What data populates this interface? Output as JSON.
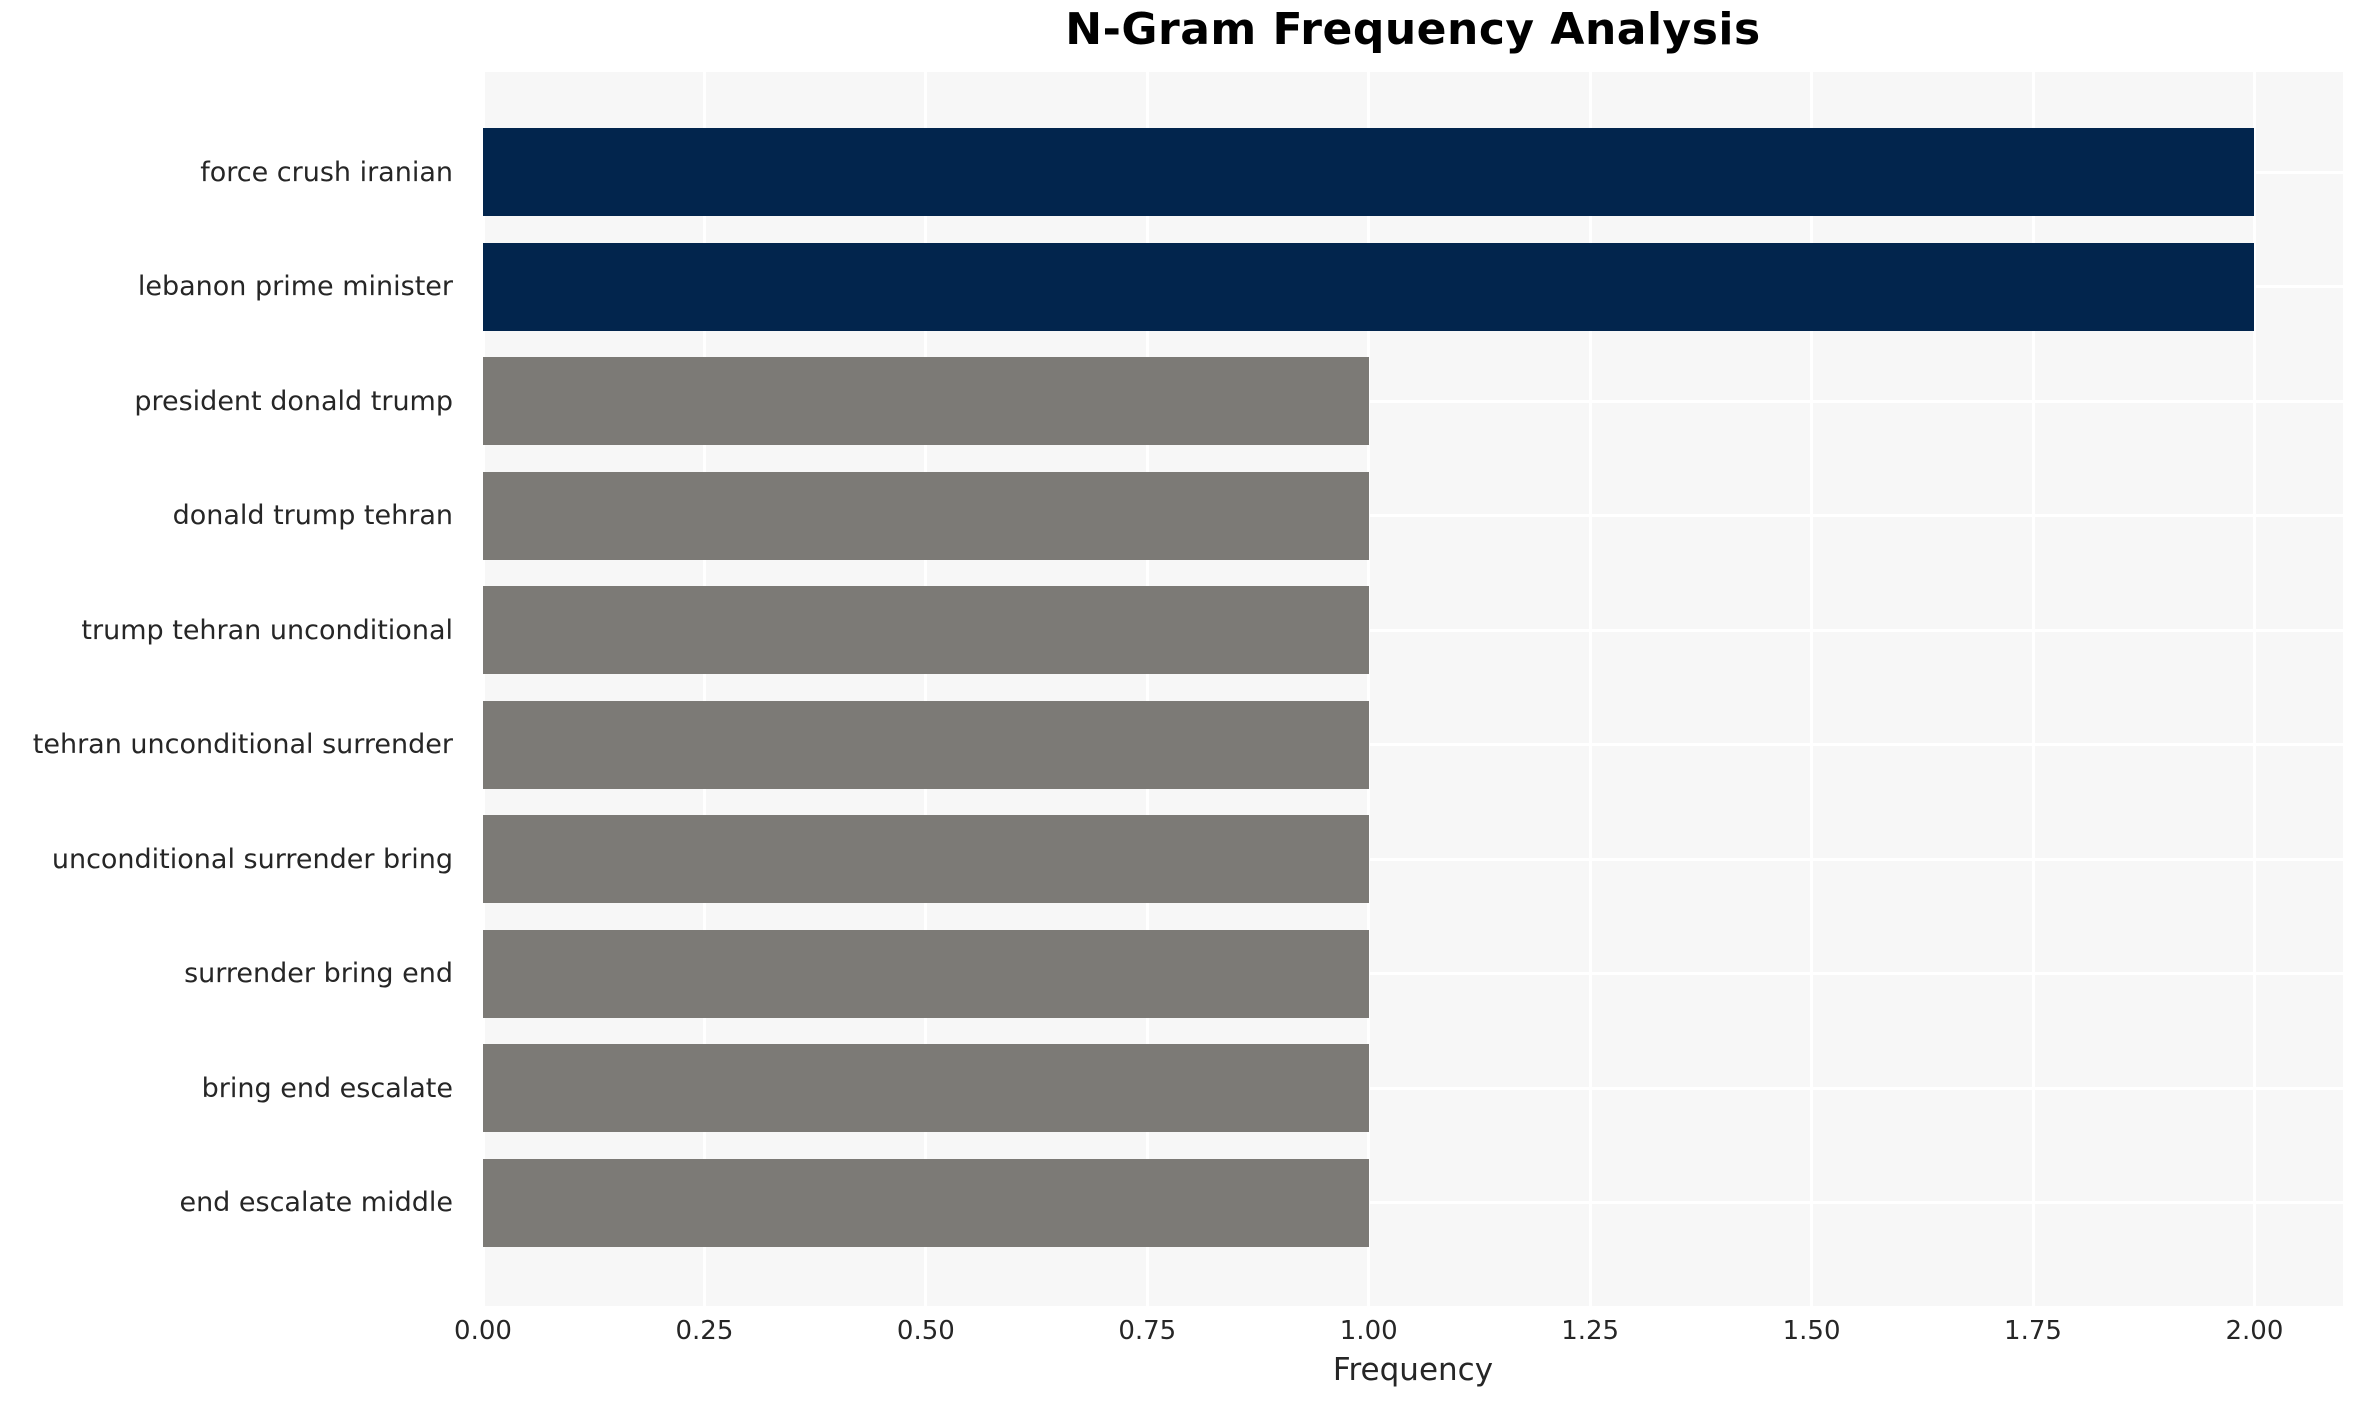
{
  "title": "N-Gram Frequency Analysis",
  "x_axis_label": "Frequency",
  "chart_data": {
    "type": "bar",
    "orientation": "horizontal",
    "title": "N-Gram Frequency Analysis",
    "xlabel": "Frequency",
    "ylabel": "",
    "categories": [
      "force crush iranian",
      "lebanon prime minister",
      "president donald trump",
      "donald trump tehran",
      "trump tehran unconditional",
      "tehran unconditional surrender",
      "unconditional surrender bring",
      "surrender bring end",
      "bring end escalate",
      "end escalate middle"
    ],
    "values": [
      2.0,
      2.0,
      1.0,
      1.0,
      1.0,
      1.0,
      1.0,
      1.0,
      1.0,
      1.0
    ],
    "bar_colors": [
      "#02254d",
      "#02254d",
      "#7c7a76",
      "#7c7a76",
      "#7c7a76",
      "#7c7a76",
      "#7c7a76",
      "#7c7a76",
      "#7c7a76",
      "#7c7a76"
    ],
    "xlim": [
      0,
      2.1
    ],
    "x_ticks": [
      0.0,
      0.25,
      0.5,
      0.75,
      1.0,
      1.25,
      1.5,
      1.75,
      2.0
    ],
    "x_tick_labels": [
      "0.00",
      "0.25",
      "0.50",
      "0.75",
      "1.00",
      "1.25",
      "1.50",
      "1.75",
      "2.00"
    ],
    "grid": true,
    "legend": false
  },
  "style": {
    "highlight_color": "#02254d",
    "default_bar_color": "#7c7a76",
    "plot_background": "#f7f7f7",
    "grid_color": "#ffffff",
    "text_color": "#262626",
    "title_color": "#000000"
  }
}
